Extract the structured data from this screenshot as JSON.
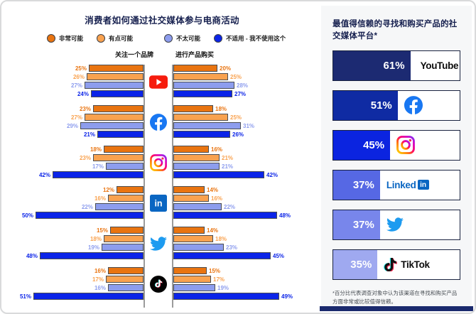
{
  "chart_data": {
    "type": "bar",
    "variant": "diverging-grouped-horizontal",
    "title": "消费者如何通过社交媒体参与电商活动",
    "legend": [
      "非常可能",
      "有点可能",
      "不太可能",
      "不适用 - 我不使用这个"
    ],
    "columns": [
      "关注一个品牌",
      "进行产品购买"
    ],
    "unit": "%",
    "series_colors": [
      "#E97410",
      "#F9A24F",
      "#8D9DEE",
      "#0B24E8"
    ],
    "axis_color": "#9B9B9B",
    "platforms": [
      {
        "name": "YouTube",
        "icon": "youtube-icon",
        "follow": [
          25,
          26,
          27,
          24
        ],
        "purchase": [
          20,
          25,
          28,
          27
        ]
      },
      {
        "name": "Facebook",
        "icon": "facebook-icon",
        "follow": [
          23,
          27,
          29,
          21
        ],
        "purchase": [
          18,
          25,
          31,
          26
        ]
      },
      {
        "name": "Instagram",
        "icon": "instagram-icon",
        "follow": [
          18,
          23,
          17,
          42
        ],
        "purchase": [
          16,
          21,
          21,
          42
        ]
      },
      {
        "name": "LinkedIn",
        "icon": "linkedin-icon",
        "follow": [
          12,
          16,
          22,
          50
        ],
        "purchase": [
          14,
          16,
          22,
          48
        ]
      },
      {
        "name": "Twitter",
        "icon": "twitter-icon",
        "follow": [
          15,
          18,
          19,
          48
        ],
        "purchase": [
          14,
          18,
          23,
          45
        ]
      },
      {
        "name": "TikTok",
        "icon": "tiktok-icon",
        "follow": [
          16,
          17,
          16,
          51
        ],
        "purchase": [
          15,
          17,
          19,
          49
        ]
      }
    ]
  },
  "trust_panel": {
    "title": "最值得信赖的寻找和购买产品的社交媒体平台*",
    "footnote": "*百分比代表调查对象中认为该渠道在寻找和购买产品方面非常或比较值得信赖。",
    "items": [
      {
        "platform": "YouTube",
        "icon": "youtube-logo",
        "value": 61,
        "fill": "#1C2A72"
      },
      {
        "platform": "Facebook",
        "icon": "facebook-icon",
        "value": 51,
        "fill": "#0F2BA3"
      },
      {
        "platform": "Instagram",
        "icon": "instagram-icon",
        "value": 45,
        "fill": "#0B24E0"
      },
      {
        "platform": "LinkedIn",
        "icon": "linkedin-logo",
        "value": 37,
        "fill": "#5668E4"
      },
      {
        "platform": "Twitter",
        "icon": "twitter-icon",
        "value": 37,
        "fill": "#7886EB"
      },
      {
        "platform": "TikTok",
        "icon": "tiktok-logo",
        "value": 35,
        "fill": "#9FA9F0"
      }
    ]
  }
}
